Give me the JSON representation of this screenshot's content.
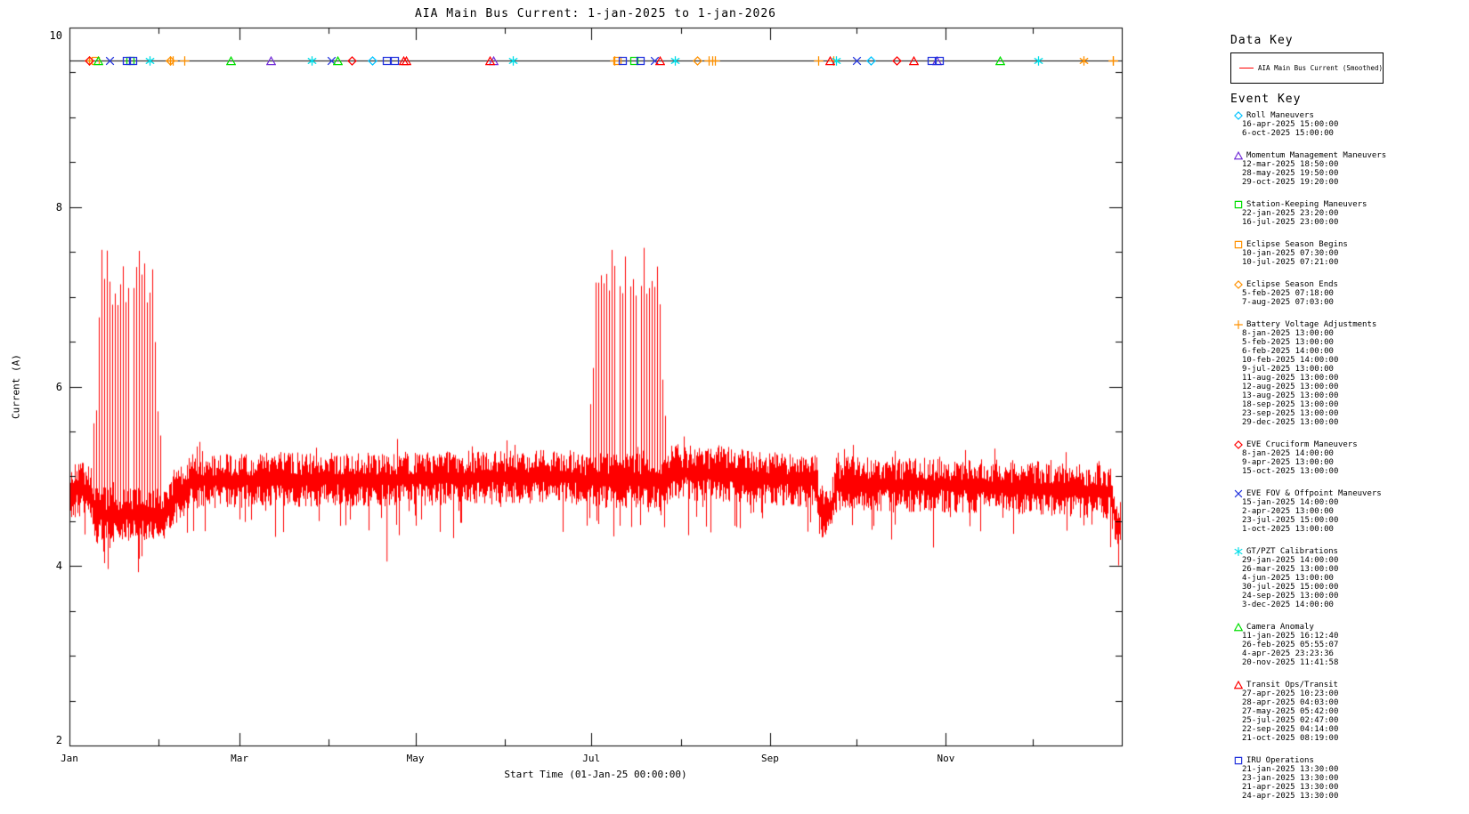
{
  "title": "AIA Main Bus Current: 1-jan-2025 to 1-jan-2026",
  "axes": {
    "ylabel": "Current (A)",
    "xlabel": "Start Time (01-Jan-25 00:00:00)",
    "ylim": [
      2,
      10
    ],
    "ytick_labels": [
      "10",
      "8",
      "6",
      "4",
      "2"
    ],
    "ytick_values": [
      10,
      8,
      6,
      4,
      2
    ],
    "y_minor_step": 0.5,
    "xtick_labels": [
      "Jan",
      "Mar",
      "May",
      "Jul",
      "Sep",
      "Nov"
    ],
    "xtick_days": [
      0,
      59,
      120,
      181,
      243,
      304
    ],
    "xminor_days": [
      31,
      90,
      151,
      212,
      273,
      334
    ],
    "x_range_days": [
      0,
      365
    ]
  },
  "chart_data": {
    "type": "line",
    "title": "AIA Main Bus Current: 1-jan-2025 to 1-jan-2026",
    "xlabel": "Start Time (01-Jan-25 00:00:00)",
    "ylabel": "Current (A)",
    "ylim": [
      2,
      10
    ],
    "series": [
      {
        "name": "AIA Main Bus Current (Smoothed)",
        "color": "#ff0000"
      }
    ],
    "line_color": "#ff0000",
    "event_marker_line_y": 9.63,
    "baseline_profile_day_amps": [
      [
        0,
        4.85
      ],
      [
        7,
        4.85
      ],
      [
        9,
        4.57
      ],
      [
        32,
        4.57
      ],
      [
        34,
        4.65
      ],
      [
        42,
        4.95
      ],
      [
        117,
        4.97
      ],
      [
        173,
        5.0
      ],
      [
        180,
        4.95
      ],
      [
        207,
        4.95
      ],
      [
        209,
        5.05
      ],
      [
        232,
        5.0
      ],
      [
        259,
        4.95
      ],
      [
        260,
        4.62
      ],
      [
        264,
        4.62
      ],
      [
        266,
        4.92
      ],
      [
        309,
        4.9
      ],
      [
        340,
        4.86
      ],
      [
        361,
        4.82
      ],
      [
        363,
        4.45
      ],
      [
        365,
        4.4
      ]
    ],
    "noise_amplitude_amps": 0.17,
    "eclipse_spike_seasons": [
      {
        "day_start": 8,
        "day_end": 32,
        "peak_min": 6.9,
        "peak_max": 7.6
      },
      {
        "day_start": 180,
        "day_end": 207,
        "peak_min": 7.0,
        "peak_max": 7.7
      }
    ],
    "down_spike": {
      "day": 110,
      "value": 4.05
    },
    "extra_plot_markers": [
      {
        "shape": "square",
        "color": "#2233dd",
        "day": 192
      },
      {
        "shape": "square",
        "color": "#2233dd",
        "day": 198
      },
      {
        "shape": "square",
        "color": "#2233dd",
        "day": 299
      },
      {
        "shape": "square",
        "color": "#2233dd",
        "day": 302
      },
      {
        "shape": "asterisk",
        "color": "#ff9100",
        "day": 352
      },
      {
        "shape": "plus",
        "color": "#ff9100",
        "day": 362
      }
    ]
  },
  "legend": {
    "data_key_title": "Data Key",
    "data_key_series": "AIA Main Bus Current (Smoothed)",
    "event_key_title": "Event Key",
    "events": [
      {
        "name": "Roll Maneuvers",
        "shape": "diamond",
        "color": "#00c3ff",
        "dates": [
          "16-apr-2025 15:00:00",
          "6-oct-2025 15:00:00"
        ]
      },
      {
        "name": "Momentum Management Maneuvers",
        "shape": "triangle",
        "color": "#7430d8",
        "dates": [
          "12-mar-2025 18:50:00",
          "28-may-2025 19:50:00",
          "29-oct-2025 19:20:00"
        ]
      },
      {
        "name": "Station-Keeping Maneuvers",
        "shape": "square",
        "color": "#00dd00",
        "dates": [
          "22-jan-2025 23:20:00",
          "16-jul-2025 23:00:00"
        ]
      },
      {
        "name": "Eclipse Season Begins",
        "shape": "square",
        "color": "#ff9100",
        "dates": [
          "10-jan-2025 07:30:00",
          "10-jul-2025 07:21:00"
        ]
      },
      {
        "name": "Eclipse Season Ends",
        "shape": "diamond",
        "color": "#ff9100",
        "dates": [
          "5-feb-2025 07:18:00",
          "7-aug-2025 07:03:00"
        ]
      },
      {
        "name": "Battery Voltage Adjustments",
        "shape": "plus",
        "color": "#ff9100",
        "dates": [
          "8-jan-2025 13:00:00",
          "5-feb-2025 13:00:00",
          "6-feb-2025 14:00:00",
          "10-feb-2025 14:00:00",
          "9-jul-2025 13:00:00",
          "11-aug-2025 13:00:00",
          "12-aug-2025 13:00:00",
          "13-aug-2025 13:00:00",
          "18-sep-2025 13:00:00",
          "23-sep-2025 13:00:00",
          "29-dec-2025 13:00:00"
        ]
      },
      {
        "name": "EVE Cruciform Maneuvers",
        "shape": "diamond",
        "color": "#ff0000",
        "dates": [
          "8-jan-2025 14:00:00",
          "9-apr-2025 13:00:00",
          "15-oct-2025 13:00:00"
        ]
      },
      {
        "name": "EVE FOV & Offpoint Maneuvers",
        "shape": "x",
        "color": "#2233dd",
        "dates": [
          "15-jan-2025 14:00:00",
          "2-apr-2025 13:00:00",
          "23-jul-2025 15:00:00",
          "1-oct-2025 13:00:00"
        ]
      },
      {
        "name": "GT/PZT Calibrations",
        "shape": "asterisk",
        "color": "#00dde8",
        "dates": [
          "29-jan-2025 14:00:00",
          "26-mar-2025 13:00:00",
          "4-jun-2025 13:00:00",
          "30-jul-2025 15:00:00",
          "24-sep-2025 13:00:00",
          "3-dec-2025 14:00:00"
        ]
      },
      {
        "name": "Camera Anomaly",
        "shape": "triangle",
        "color": "#00e000",
        "dates": [
          "11-jan-2025 16:12:40",
          "26-feb-2025 05:55:07",
          "4-apr-2025 23:23:36",
          "20-nov-2025 11:41:58"
        ]
      },
      {
        "name": "Transit Ops/Transit",
        "shape": "triangle",
        "color": "#ff0000",
        "dates": [
          "27-apr-2025 10:23:00",
          "28-apr-2025 04:03:00",
          "27-may-2025 05:42:00",
          "25-jul-2025 02:47:00",
          "22-sep-2025 04:14:00",
          "21-oct-2025 08:19:00"
        ]
      },
      {
        "name": "IRU Operations",
        "shape": "square",
        "color": "#2233dd",
        "dates": [
          "21-jan-2025 13:30:00",
          "23-jan-2025 13:30:00",
          "21-apr-2025 13:30:00",
          "24-apr-2025 13:30:00"
        ]
      }
    ]
  }
}
